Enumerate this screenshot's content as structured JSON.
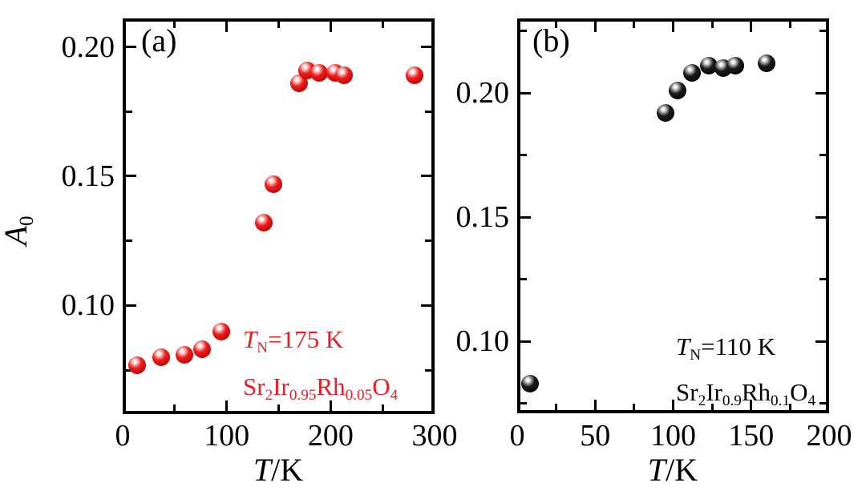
{
  "figure": {
    "background": "#ffffff",
    "accent_red": "#ed1c24",
    "accent_black": "#000000"
  },
  "chart_data": [
    {
      "type": "scatter",
      "panel_label": "(a)",
      "xlabel_rich": [
        [
          "T",
          "i"
        ],
        [
          "/K",
          ""
        ]
      ],
      "ylabel_rich": [
        [
          "A",
          "i"
        ],
        [
          "0",
          "sub"
        ]
      ],
      "xlabel_text": "T/K",
      "ylabel_text": "A0",
      "xlim": [
        0,
        300
      ],
      "ylim": [
        0.058,
        0.211
      ],
      "xticks": {
        "values": [
          0,
          100,
          200,
          300
        ],
        "labels": [
          "0",
          "100",
          "200",
          "300"
        ],
        "minor": [
          50,
          150,
          250
        ]
      },
      "yticks": {
        "values": [
          0.1,
          0.15,
          0.2
        ],
        "labels": [
          "0.10",
          "0.15",
          "0.20"
        ],
        "minor": [
          0.075,
          0.125,
          0.175
        ]
      },
      "series": [
        {
          "name": "Sr2Ir0.95Rh0.05O4",
          "neel_temperature_K": 175,
          "color": "#ed1c24",
          "ball": {
            "highlight": "#ffffff",
            "base": "#ee1c1c",
            "dark": "#b00000"
          },
          "points": [
            [
              14,
              0.077
            ],
            [
              37,
              0.08
            ],
            [
              59,
              0.081
            ],
            [
              76,
              0.083
            ],
            [
              95,
              0.09
            ],
            [
              136,
              0.132
            ],
            [
              145,
              0.147
            ],
            [
              170,
              0.186
            ],
            [
              177,
              0.191
            ],
            [
              189,
              0.19
            ],
            [
              204,
              0.19
            ],
            [
              213,
              0.189
            ],
            [
              281,
              0.189
            ]
          ]
        }
      ],
      "annotations": [
        {
          "color": "#ed1c24",
          "parts": [
            [
              "T",
              "i"
            ],
            [
              "N",
              "sub"
            ],
            [
              "=175 K",
              ""
            ]
          ]
        },
        {
          "color": "#ed1c24",
          "parts": [
            [
              "Sr",
              ""
            ],
            [
              "2",
              "sub"
            ],
            [
              "Ir",
              ""
            ],
            [
              "0.95",
              "sub"
            ],
            [
              "Rh",
              ""
            ],
            [
              "0.05",
              "sub"
            ],
            [
              "O",
              ""
            ],
            [
              "4",
              "sub"
            ]
          ]
        }
      ]
    },
    {
      "type": "scatter",
      "panel_label": "(b)",
      "xlabel_rich": [
        [
          "T",
          "i"
        ],
        [
          "/K",
          ""
        ]
      ],
      "xlabel_text": "T/K",
      "xlim": [
        0,
        200
      ],
      "ylim": [
        0.071,
        0.23
      ],
      "xticks": {
        "values": [
          0,
          50,
          100,
          150,
          200
        ],
        "labels": [
          "0",
          "50",
          "100",
          "150",
          "200"
        ],
        "minor": [
          25,
          75,
          125,
          175
        ]
      },
      "yticks": {
        "values": [
          0.1,
          0.15,
          0.2
        ],
        "labels": [
          "0.10",
          "0.15",
          "0.20"
        ],
        "minor": [
          0.075,
          0.125,
          0.175,
          0.225
        ]
      },
      "series": [
        {
          "name": "Sr2Ir0.9Rh0.1O4",
          "neel_temperature_K": 110,
          "color": "#000000",
          "ball": {
            "highlight": "#ffffff",
            "base": "#1c1c1c",
            "dark": "#000000"
          },
          "points": [
            [
              8,
              0.083
            ],
            [
              95,
              0.192
            ],
            [
              103,
              0.201
            ],
            [
              112,
              0.208
            ],
            [
              123,
              0.211
            ],
            [
              132,
              0.21
            ],
            [
              140,
              0.211
            ],
            [
              160,
              0.212
            ]
          ]
        }
      ],
      "annotations": [
        {
          "color": "#000000",
          "parts": [
            [
              "T",
              "i"
            ],
            [
              "N",
              "sub"
            ],
            [
              "=110 K",
              ""
            ]
          ]
        },
        {
          "color": "#000000",
          "parts": [
            [
              "Sr",
              ""
            ],
            [
              "2",
              "sub"
            ],
            [
              "Ir",
              ""
            ],
            [
              "0.9",
              "sub"
            ],
            [
              "Rh",
              ""
            ],
            [
              "0.1",
              "sub"
            ],
            [
              "O",
              ""
            ],
            [
              "4",
              "sub"
            ]
          ]
        }
      ]
    }
  ]
}
